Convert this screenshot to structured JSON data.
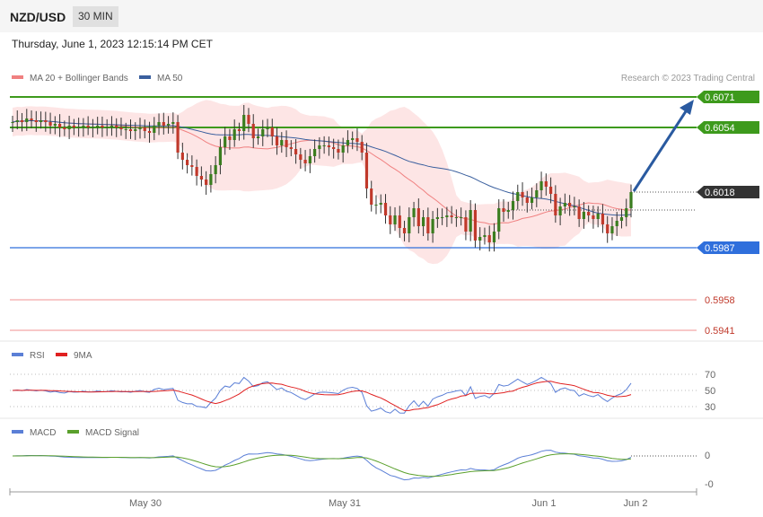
{
  "header": {
    "symbol": "NZD/USD",
    "timeframe": "30 MIN",
    "datetime": "Thursday, June 1, 2023 12:15:14 PM CET",
    "copyright": "Research © 2023 Trading Central"
  },
  "colors": {
    "candle_up": "#3a7d1f",
    "candle_down": "#c0392b",
    "ma20": "#f08080",
    "ma50": "#3a5f9e",
    "bollinger_fill": "#fde0e0",
    "resistance": "#3d9a1c",
    "support_blue": "#2f6fdc",
    "support_red": "#f4a6a6",
    "current_price_bg": "#333333",
    "rsi": "#5b7fd6",
    "rsi_ma": "#e02020",
    "macd": "#5b7fd6",
    "macd_signal": "#5aa02c",
    "arrow": "#2a5aa0"
  },
  "chart_data": [
    {
      "type": "candlestick",
      "legend": [
        "MA 20 + Bollinger Bands",
        "MA 50"
      ],
      "legend_position": "top-left",
      "ylim": [
        0.5936,
        0.6083
      ],
      "x_labels": [
        "May 30",
        "May 31",
        "Jun 1",
        "Jun 2"
      ],
      "levels": [
        {
          "value": "0.6071",
          "kind": "resistance"
        },
        {
          "value": "0.6054",
          "kind": "resistance"
        },
        {
          "value": "0.6018",
          "kind": "current"
        },
        {
          "value": "0.5987",
          "kind": "support"
        },
        {
          "value": "0.5958",
          "kind": "support_red"
        },
        {
          "value": "0.5941",
          "kind": "support_red"
        }
      ],
      "close": [
        0.6057,
        0.6058,
        0.6057,
        0.6059,
        0.6058,
        0.6057,
        0.6058,
        0.6057,
        0.6055,
        0.6056,
        0.6054,
        0.6053,
        0.6055,
        0.6054,
        0.6054,
        0.6055,
        0.6054,
        0.6054,
        0.6055,
        0.6054,
        0.6054,
        0.6055,
        0.6054,
        0.6053,
        0.6053,
        0.6052,
        0.6053,
        0.6054,
        0.6052,
        0.6051,
        0.6055,
        0.6057,
        0.6055,
        0.6056,
        0.6057,
        0.604,
        0.6036,
        0.6033,
        0.6032,
        0.6027,
        0.6025,
        0.6022,
        0.6028,
        0.6033,
        0.6043,
        0.6049,
        0.6047,
        0.6053,
        0.6052,
        0.6061,
        0.6056,
        0.6048,
        0.6049,
        0.6053,
        0.6054,
        0.6049,
        0.6044,
        0.6047,
        0.6043,
        0.6042,
        0.6039,
        0.6036,
        0.6034,
        0.6038,
        0.6042,
        0.6044,
        0.6044,
        0.6043,
        0.6042,
        0.604,
        0.6044,
        0.6047,
        0.6048,
        0.6046,
        0.604,
        0.602,
        0.6011,
        0.6011,
        0.6012,
        0.6005,
        0.6,
        0.6005,
        0.5998,
        0.5995,
        0.6004,
        0.6009,
        0.5999,
        0.6004,
        0.5995,
        0.6003,
        0.6004,
        0.6004,
        0.6005,
        0.6004,
        0.6004,
        0.6004,
        0.5996,
        0.6008,
        0.5991,
        0.5993,
        0.5994,
        0.599,
        0.5996,
        0.6009,
        0.6007,
        0.6008,
        0.6013,
        0.6018,
        0.6015,
        0.6012,
        0.6015,
        0.6019,
        0.6024,
        0.6021,
        0.6017,
        0.6005,
        0.601,
        0.6012,
        0.601,
        0.601,
        0.6003,
        0.6007,
        0.6005,
        0.6003,
        0.6006,
        0.6,
        0.5995,
        0.5999,
        0.6002,
        0.6004,
        0.6009,
        0.6018
      ],
      "rsi_ticks": [
        "70",
        "50",
        "30"
      ],
      "rsi_legend": [
        "RSI",
        "9MA"
      ],
      "macd_ticks": [
        "0",
        "-0"
      ],
      "macd_legend": [
        "MACD",
        "MACD Signal"
      ]
    }
  ]
}
